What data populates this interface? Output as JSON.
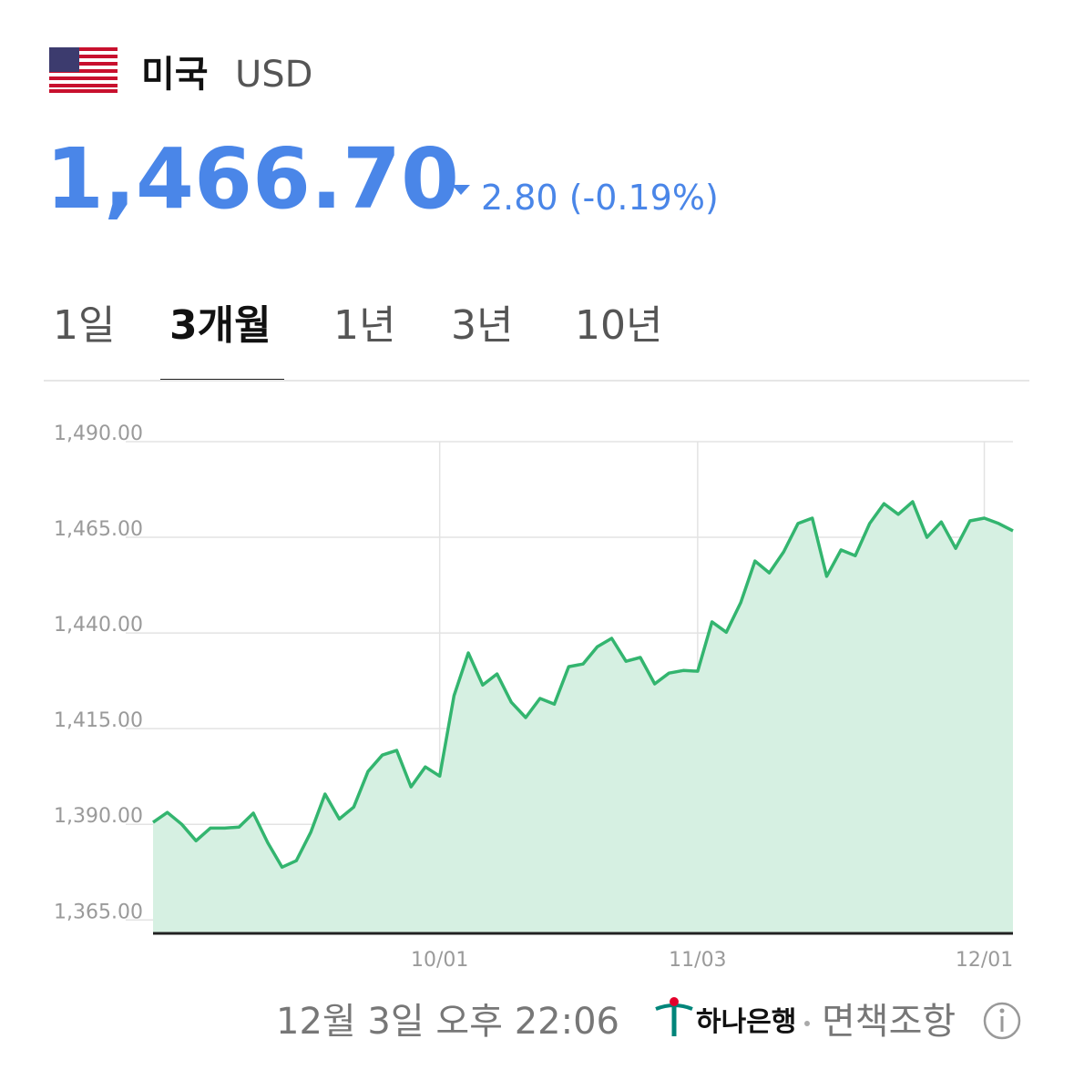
{
  "header": {
    "country": "미국",
    "currency": "USD",
    "price": "1,466.70",
    "change": "2.80 (-0.19%)"
  },
  "tabs": {
    "items": [
      "1일",
      "3개월",
      "1년",
      "3년",
      "10년"
    ],
    "active": 1
  },
  "footer": {
    "timestamp": "12월 3일 오후 22:06",
    "bank": "하나은행",
    "disclaimer": "면책조항"
  },
  "chart_data": {
    "type": "area",
    "color": "#33b56f",
    "fill": "#d6f0e2",
    "grid": true,
    "categories": [
      null,
      null,
      null,
      null,
      null,
      null,
      null,
      null,
      null,
      null,
      null,
      null,
      null,
      null,
      null,
      null,
      null,
      null,
      null,
      null,
      "10/01",
      null,
      null,
      null,
      null,
      null,
      null,
      null,
      null,
      null,
      null,
      null,
      null,
      null,
      null,
      null,
      null,
      null,
      "11/03",
      null,
      null,
      null,
      null,
      null,
      null,
      null,
      null,
      null,
      null,
      null,
      null,
      null,
      null,
      null,
      null,
      null,
      null,
      null,
      "12/01",
      null,
      null
    ],
    "values": [
      1390.5,
      1393.1,
      1390.0,
      1385.7,
      1389.0,
      1389.0,
      1389.3,
      1392.9,
      1385.2,
      1378.8,
      1380.5,
      1387.9,
      1397.9,
      1391.4,
      1394.5,
      1403.8,
      1408.1,
      1409.3,
      1399.8,
      1405.0,
      1402.6,
      1423.6,
      1434.8,
      1426.4,
      1429.3,
      1421.9,
      1417.9,
      1422.9,
      1421.4,
      1431.2,
      1431.9,
      1436.4,
      1438.6,
      1432.6,
      1433.6,
      1426.7,
      1429.5,
      1430.2,
      1430.0,
      1442.9,
      1440.2,
      1447.9,
      1458.8,
      1455.7,
      1461.2,
      1468.6,
      1470.0,
      1454.8,
      1461.7,
      1460.2,
      1468.6,
      1473.8,
      1471.0,
      1474.3,
      1465.0,
      1469.0,
      1462.1,
      1469.3,
      1470.0,
      1468.6,
      1466.7
    ],
    "ylim": [
      1361.5,
      1490
    ],
    "yticks": [
      {
        "value": 1490,
        "label": "1,490.00"
      },
      {
        "value": 1465,
        "label": "1,465.00"
      },
      {
        "value": 1440,
        "label": "1,440.00"
      },
      {
        "value": 1415,
        "label": "1,415.00"
      },
      {
        "value": 1390,
        "label": "1,390.00"
      },
      {
        "value": 1365,
        "label": "1,365.00"
      }
    ]
  }
}
